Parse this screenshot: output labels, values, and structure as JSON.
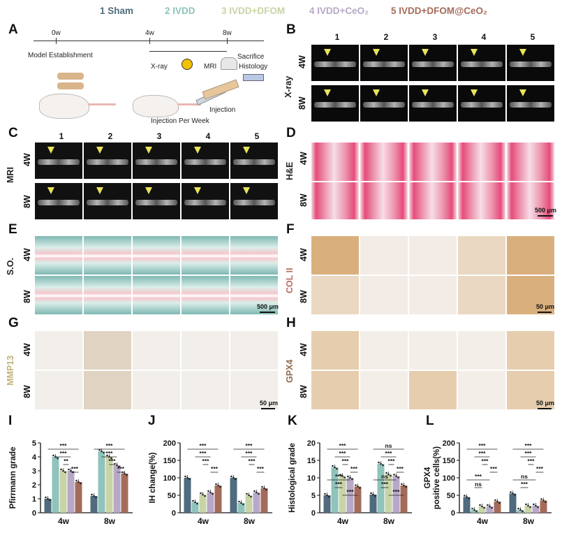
{
  "legend": [
    {
      "label": "1 Sham",
      "color": "#4f6b7d"
    },
    {
      "label": "2 IVDD",
      "color": "#8fc3bb"
    },
    {
      "label": "3 IVDD+DFOM",
      "color": "#c8d4a5"
    },
    {
      "label": "4 IVDD+CeO₂",
      "color": "#b8a8c8"
    },
    {
      "label": "5 IVDD+DFOM@CeO₂",
      "color": "#a46b5a"
    }
  ],
  "panel_labels": [
    "A",
    "B",
    "C",
    "D",
    "E",
    "F",
    "G",
    "H",
    "I",
    "J",
    "K",
    "L"
  ],
  "schematic": {
    "tick_0": "0w",
    "tick_4": "4w",
    "tick_8": "8w",
    "model": "Model Establishment",
    "xray": "X-ray",
    "mri": "MRI",
    "sacrifice": "Sacrifice",
    "histology": "Histology",
    "injection": "Injection",
    "injection_week": "Injection Per Week"
  },
  "image_rows": {
    "cols": [
      "1",
      "2",
      "3",
      "4",
      "5"
    ],
    "rows": [
      "4W",
      "8W"
    ],
    "xray_label": "X-ray",
    "mri_label": "MRI",
    "he_label": "H&E",
    "so_label": "S.O.",
    "col2_label": "COL II",
    "mmp13_label": "MMP13",
    "gpx4_label": "GPX4",
    "scale_500": "500 μm",
    "scale_50": "50 μm"
  },
  "colors": {
    "sham": "#4f6b7d",
    "ivdd": "#8fc3bb",
    "dfom": "#c8d4a5",
    "ceo2": "#b8a8c8",
    "combo": "#a46b5a",
    "col2_label": "#b96f5f",
    "mmp13_label": "#c0b27a",
    "gpx4_label": "#8f6a4f"
  },
  "chart_data": [
    {
      "type": "bar",
      "panel": "I",
      "categories": [
        "4w",
        "8w"
      ],
      "ylabel": "Pfirrmann grade",
      "ylim": [
        0,
        5
      ],
      "yticks": [
        0,
        1,
        2,
        3,
        4,
        5
      ],
      "series": [
        {
          "values": [
            1.0,
            1.2
          ]
        },
        {
          "values": [
            4.0,
            4.4
          ]
        },
        {
          "values": [
            3.0,
            4.0
          ]
        },
        {
          "values": [
            3.0,
            3.4
          ]
        },
        {
          "values": [
            2.2,
            2.8
          ]
        }
      ],
      "annotations": [
        "***",
        "***",
        "**",
        "***",
        "***",
        "***",
        "***",
        "***"
      ]
    },
    {
      "type": "bar",
      "panel": "J",
      "categories": [
        "4w",
        "8w"
      ],
      "ylabel": "IH change(%)",
      "ylim": [
        0,
        200
      ],
      "yticks": [
        0,
        50,
        100,
        150,
        200
      ],
      "series": [
        {
          "values": [
            100,
            100
          ]
        },
        {
          "values": [
            30,
            28
          ]
        },
        {
          "values": [
            52,
            50
          ]
        },
        {
          "values": [
            58,
            58
          ]
        },
        {
          "values": [
            78,
            70
          ]
        }
      ],
      "annotations": [
        "***",
        "***",
        "***",
        "***",
        "***",
        "***",
        "***",
        "***"
      ]
    },
    {
      "type": "bar",
      "panel": "K",
      "categories": [
        "4w",
        "8w"
      ],
      "ylabel": "Histological grade",
      "ylim": [
        0,
        20
      ],
      "yticks": [
        0,
        5,
        10,
        15,
        20
      ],
      "series": [
        {
          "values": [
            5.0,
            5.2
          ]
        },
        {
          "values": [
            13.0,
            14.0
          ]
        },
        {
          "values": [
            10.5,
            11.0
          ]
        },
        {
          "values": [
            10.0,
            10.5
          ]
        },
        {
          "values": [
            7.5,
            7.8
          ]
        }
      ],
      "annotations": [
        "***",
        "***",
        "***",
        "***",
        "***",
        "***",
        "***",
        "ns",
        "***",
        "***",
        "***",
        "ns",
        "***",
        "***"
      ]
    },
    {
      "type": "bar",
      "panel": "L",
      "categories": [
        "4w",
        "8w"
      ],
      "ylabel": "GPX4\npositive cells(%)",
      "ylim": [
        0,
        200
      ],
      "yticks": [
        0,
        50,
        100,
        150,
        200
      ],
      "series": [
        {
          "values": [
            45,
            55
          ]
        },
        {
          "values": [
            8,
            8
          ]
        },
        {
          "values": [
            18,
            20
          ]
        },
        {
          "values": [
            18,
            20
          ]
        },
        {
          "values": [
            32,
            35
          ]
        }
      ],
      "annotations": [
        "***",
        "***",
        "***",
        "***",
        "***",
        "ns",
        "***",
        "***",
        "***",
        "***",
        "ns",
        "***"
      ]
    }
  ]
}
